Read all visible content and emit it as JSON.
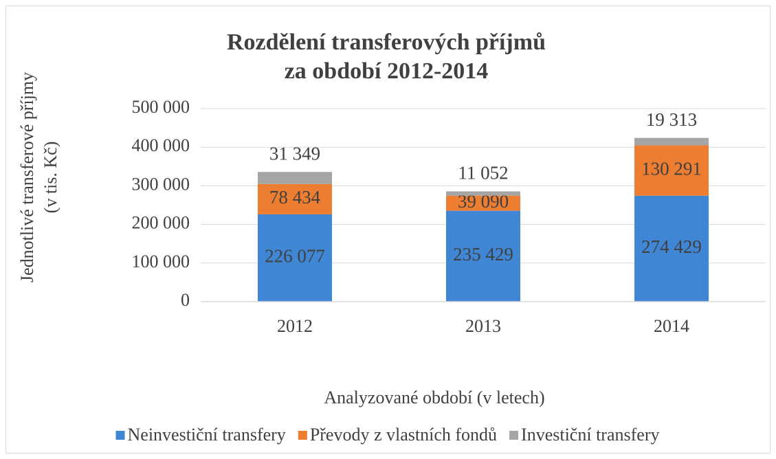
{
  "chart_data": {
    "type": "stacked_bar",
    "title": [
      "Rozdělení transferových příjmů",
      "za období 2012-2014"
    ],
    "y_label": [
      "Jednotlivé transferové příjmy",
      "(v tis. Kč)"
    ],
    "x_label": "Analyzované období (v letech)",
    "categories": [
      "2012",
      "2013",
      "2014"
    ],
    "series": [
      {
        "name": "Neinvestiční transfery",
        "color": "#3f86d4",
        "values": [
          226077,
          235429,
          274429
        ],
        "value_labels": [
          "226 077",
          "235 429",
          "274 429"
        ]
      },
      {
        "name": "Převody z vlastních fondů",
        "color": "#ed7d31",
        "values": [
          78434,
          39090,
          130291
        ],
        "value_labels": [
          "78 434",
          "39 090",
          "130 291"
        ]
      },
      {
        "name": "Investiční transfery",
        "color": "#a5a5a5",
        "values": [
          31349,
          11052,
          19313
        ],
        "value_labels": [
          "31 349",
          "11 052",
          "19 313"
        ]
      }
    ],
    "ylim": [
      0,
      500000
    ],
    "yticks": [
      0,
      {
        "value": 100000,
        "label": "100 000"
      },
      {
        "value": 200000,
        "label": "200 000"
      },
      {
        "value": 300000,
        "label": "300 000"
      },
      {
        "value": 400000,
        "label": "400 000"
      },
      {
        "value": 500000,
        "label": "500 000"
      }
    ],
    "grid": true,
    "legend": "bottom"
  }
}
